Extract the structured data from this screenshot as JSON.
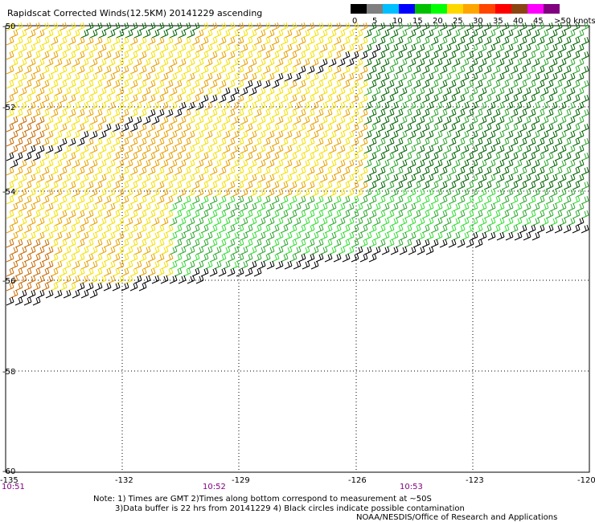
{
  "title": "Rapidscat Corrected Winds(12.5KM) 20141229 ascending",
  "legend": {
    "labels": [
      "0",
      "5",
      "10",
      "15",
      "20",
      "25",
      "30",
      "35",
      "40",
      "45",
      ">50 knots"
    ],
    "colors": [
      "#000000",
      "#7f7f7f",
      "#00bfff",
      "#0000ff",
      "#00c000",
      "#00ff00",
      "#ffd700",
      "#ffa500",
      "#ff4500",
      "#ff0000",
      "#8b4513",
      "#ff00ff",
      "#800080"
    ]
  },
  "axes": {
    "lon_labels": [
      "-135",
      "-132",
      "-129",
      "-126",
      "-123",
      "-120"
    ],
    "lat_labels": [
      "-50",
      "-52",
      "-54",
      "-56",
      "-58",
      "-60"
    ]
  },
  "times": [
    "10:51",
    "10:52",
    "10:53"
  ],
  "notes": {
    "line1": "Note: 1) Times are GMT 2)Times along bottom correspond to measurement at ~50S",
    "line2": "3)Data buffer is 22 hrs from 20141229 4) Black circles indicate possible contamination",
    "credit": "NOAA/NESDIS/Office of Research and Applications"
  },
  "colors": {
    "black": "#000000",
    "dark_green": "#006400",
    "green": "#2fa82f",
    "bright_green": "#33dd33",
    "yellow": "#f5e000",
    "orange": "#e8a000",
    "dark_orange": "#c86a00",
    "grid": "#000000"
  }
}
